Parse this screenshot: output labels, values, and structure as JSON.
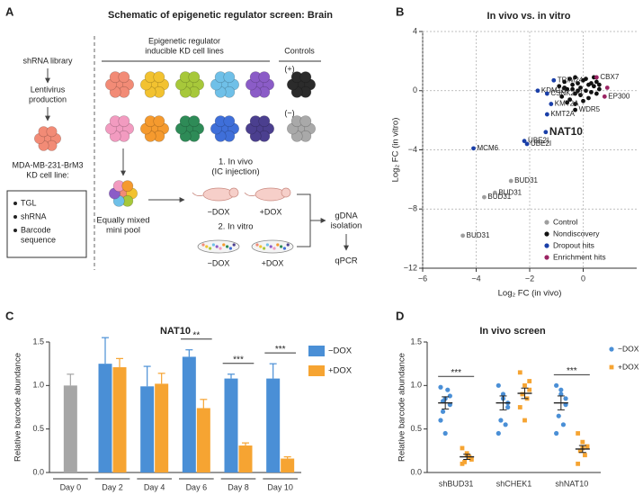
{
  "panel_labels": [
    "A",
    "B",
    "C",
    "D"
  ],
  "schematic": {
    "title": "Schematic of epigenetic regulator screen: Brain",
    "library": "shRNA library",
    "lentivirus": [
      "Lentivirus",
      "production"
    ],
    "cell_line": [
      "MDA-MB-231-BrM3",
      "KD cell line:"
    ],
    "features": [
      [
        "TGL"
      ],
      [
        "shRNA"
      ],
      [
        "Barcode",
        "sequence"
      ]
    ],
    "kd_lines": [
      "Epigenetic regulator",
      "inducible KD cell lines"
    ],
    "controls": "Controls",
    "positive": "(+)",
    "negative": "(−)",
    "pool": [
      "Equally mixed",
      "mini pool"
    ],
    "in_vivo": [
      "1. In vivo",
      "(IC injection)"
    ],
    "in_vivo_arms": [
      "−DOX",
      "+DOX"
    ],
    "in_vitro": "2. In vitro",
    "in_vitro_arms": [
      "−DOX",
      "+DOX"
    ],
    "gdna": [
      "gDNA",
      "isolation"
    ],
    "qpcr": "qPCR"
  },
  "chart_data": [
    {
      "type": "scatter",
      "title": "In vivo vs. in vitro",
      "x_label": "Log₂ FC (in vivo)",
      "y_label": "Log₂ FC (in vitro)",
      "xlim": [
        -6,
        2
      ],
      "ylim": [
        -12,
        4
      ],
      "xticks": [
        {
          "value": -6,
          "label": "−6"
        },
        {
          "value": -4,
          "label": "−4"
        },
        {
          "value": -2,
          "label": "−2"
        },
        0
      ],
      "yticks": [
        {
          "value": -12,
          "label": "−12"
        },
        {
          "value": -8,
          "label": "−8"
        },
        {
          "value": -4,
          "label": "−4"
        },
        0,
        4
      ],
      "grid": true,
      "legend": "lower right",
      "series": [
        {
          "name": "Control",
          "color": "#9e9e9e",
          "x": [
            -2.7,
            -3.3,
            -3.7,
            -4.5
          ],
          "values": [
            -6.1,
            -6.9,
            -7.2,
            -9.8
          ],
          "labels": [
            "BUD31",
            "BUD31",
            "BUD31",
            "BUD31"
          ]
        },
        {
          "name": "Nondiscovery",
          "color": "#111111",
          "x": [
            -0.3,
            -0.9,
            -0.7,
            -0.6,
            -0.5,
            -0.4,
            -0.3,
            -0.2,
            -0.1,
            0,
            0.1,
            0.2,
            0.3,
            0.4,
            0.5,
            0.6,
            -0.8,
            -0.5,
            -0.3,
            -0.1,
            0.1,
            0.3,
            0.5,
            -0.6,
            -0.2,
            0.2,
            0.4,
            -0.4,
            0,
            0.6,
            -0.7,
            -0.3
          ],
          "values": [
            -1.3,
            0.3,
            0.6,
            0.1,
            0.8,
            0.4,
            -0.2,
            0.5,
            0.2,
            0.7,
            0.0,
            0.4,
            -0.1,
            0.3,
            0.6,
            0.1,
            -0.4,
            -0.6,
            0.9,
            -0.3,
            0.8,
            0.5,
            -0.2,
            -0.8,
            0.0,
            -0.5,
            0.9,
            0.1,
            -0.7,
            0.4,
            0.2,
            -0.9
          ],
          "labels": [
            "WDR5",
            null,
            null,
            null,
            null,
            null,
            null,
            null,
            null,
            null,
            null,
            null,
            null,
            null,
            null,
            null,
            null,
            null,
            null,
            null,
            null,
            null,
            null,
            null,
            null,
            null,
            null,
            null,
            null,
            null,
            null,
            null
          ]
        },
        {
          "name": "Dropout hits",
          "color": "#1a3fa8",
          "x": [
            -1.1,
            -1.7,
            -1.35,
            -1.2,
            -1.35,
            -1.4,
            -2.2,
            -2.1,
            -4.1
          ],
          "values": [
            0.7,
            0.0,
            -0.2,
            -0.9,
            -1.6,
            -2.8,
            -3.4,
            -3.6,
            -3.9
          ],
          "labels": [
            "TRIM24",
            "KDM1B",
            "CSNK2A1",
            "KMT2A",
            "KMT2A",
            "NAT10",
            "UBE2I",
            "UBE2I",
            "MCM6"
          ]
        },
        {
          "name": "Enrichment hits",
          "color": "#9b2463",
          "x": [
            0.5,
            0.8,
            0.9
          ],
          "values": [
            0.9,
            -0.4,
            0.2
          ],
          "labels": [
            "CBX7",
            "EP300",
            null
          ]
        }
      ]
    },
    {
      "type": "bar",
      "title": "NAT10",
      "y_label": "Relative barcode abundance",
      "categories": [
        "Day 0",
        "Day 2",
        "Day 4",
        "Day 6",
        "Day 8",
        "Day 10"
      ],
      "series": [
        {
          "color": "#a6a6a6",
          "values": [
            1.0,
            null,
            null,
            null,
            null,
            null
          ],
          "errors": [
            0.13,
            null,
            null,
            null,
            null,
            null
          ]
        },
        {
          "name": "−DOX",
          "color": "#4a8fd6",
          "values": [
            null,
            1.25,
            0.99,
            1.33,
            1.08,
            1.08
          ],
          "errors": [
            null,
            0.3,
            0.23,
            0.08,
            0.05,
            0.17
          ]
        },
        {
          "name": "+DOX",
          "color": "#f6a432",
          "values": [
            null,
            1.21,
            1.02,
            0.74,
            0.31,
            0.16
          ],
          "errors": [
            null,
            0.1,
            0.12,
            0.1,
            0.03,
            0.02
          ]
        }
      ],
      "significance": [
        null,
        null,
        null,
        "**",
        "***",
        "***"
      ],
      "ylim": [
        0,
        1.5
      ],
      "yticks": [
        {
          "value": 0,
          "label": "0.0"
        },
        {
          "value": 0.5,
          "label": "0.5"
        },
        {
          "value": 1,
          "label": "1.0"
        },
        {
          "value": 1.5,
          "label": "1.5"
        }
      ],
      "legend": "upper right"
    },
    {
      "type": "dot",
      "title": "In vivo screen",
      "y_label": "Relative barcode abundance",
      "categories": [
        "shBUD31",
        "shCHEK1",
        "shNAT10"
      ],
      "series": [
        {
          "name": "−DOX",
          "color": "#4a8fd6",
          "values": [
            [
              0.98,
              0.85,
              0.78,
              0.7,
              0.95,
              0.6,
              0.45,
              0.88,
              0.82
            ],
            [
              1.0,
              0.85,
              0.75,
              0.6,
              0.55,
              0.45,
              0.9,
              0.8
            ],
            [
              1.0,
              0.9,
              0.78,
              0.65,
              0.55,
              0.45,
              0.95,
              0.85
            ]
          ],
          "mean": [
            0.8,
            0.8,
            0.8
          ],
          "sem": [
            0.07,
            0.08,
            0.08
          ]
        },
        {
          "name": "+DOX",
          "color": "#f6a432",
          "values": [
            [
              0.28,
              0.22,
              0.15,
              0.12,
              0.18,
              0.1,
              0.2
            ],
            [
              1.15,
              1.0,
              0.95,
              0.9,
              0.85,
              0.75,
              0.6,
              1.05
            ],
            [
              0.45,
              0.35,
              0.3,
              0.25,
              0.2,
              0.1,
              0.28
            ]
          ],
          "mean": [
            0.18,
            0.91,
            0.27
          ],
          "sem": [
            0.03,
            0.06,
            0.04
          ]
        }
      ],
      "significance": [
        "***",
        null,
        "***"
      ],
      "ylim": [
        0,
        1.5
      ],
      "yticks": [
        {
          "value": 0,
          "label": "0.0"
        },
        {
          "value": 0.5,
          "label": "0.5"
        },
        {
          "value": 1,
          "label": "1.0"
        },
        {
          "value": 1.5,
          "label": "1.5"
        }
      ],
      "legend": "upper right"
    }
  ]
}
